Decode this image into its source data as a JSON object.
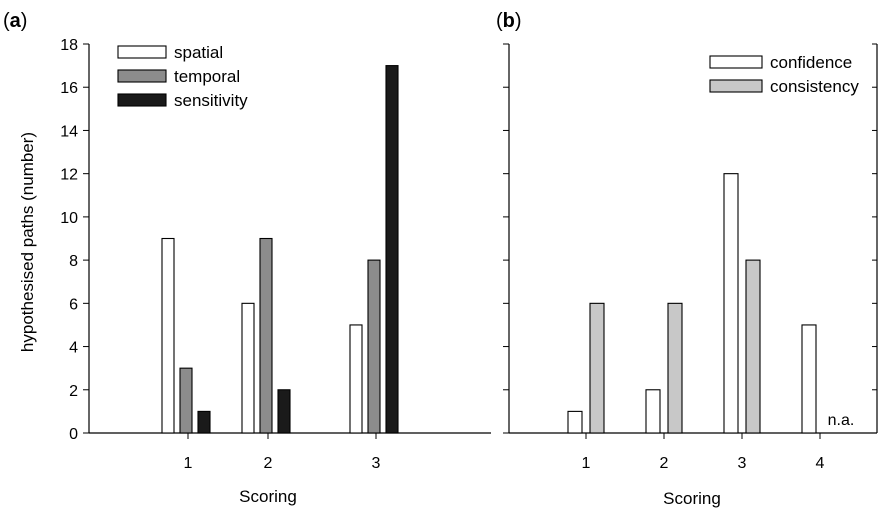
{
  "chart_data": [
    {
      "type": "bar",
      "panel_label": {
        "open": "(",
        "letter": "a",
        "close": ")"
      },
      "xlabel": "Scoring",
      "ylabel": "hypothesised paths (number)",
      "categories": [
        "1",
        "2",
        "3"
      ],
      "ylim": [
        0,
        18
      ],
      "yticks": [
        0,
        2,
        4,
        6,
        8,
        10,
        12,
        14,
        16,
        18
      ],
      "legend_position": "top-left",
      "series": [
        {
          "name": "spatial",
          "color": "#ffffff",
          "values": [
            9,
            6,
            5
          ]
        },
        {
          "name": "temporal",
          "color": "#8c8c8c",
          "values": [
            3,
            9,
            8
          ]
        },
        {
          "name": "sensitivity",
          "color": "#1a1a1a",
          "values": [
            1,
            2,
            17
          ]
        }
      ]
    },
    {
      "type": "bar",
      "panel_label": {
        "open": "(",
        "letter": "b",
        "close": ")"
      },
      "xlabel": "Scoring",
      "categories": [
        "1",
        "2",
        "3",
        "4"
      ],
      "ylim": [
        0,
        18
      ],
      "legend_position": "top-right",
      "series": [
        {
          "name": "confidence",
          "color": "#ffffff",
          "values": [
            1,
            2,
            12,
            5
          ]
        },
        {
          "name": "consistency",
          "color": "#c8c8c8",
          "values": [
            6,
            6,
            8,
            null
          ]
        }
      ],
      "annotations": [
        {
          "text": "n.a.",
          "category": "4"
        }
      ]
    }
  ]
}
